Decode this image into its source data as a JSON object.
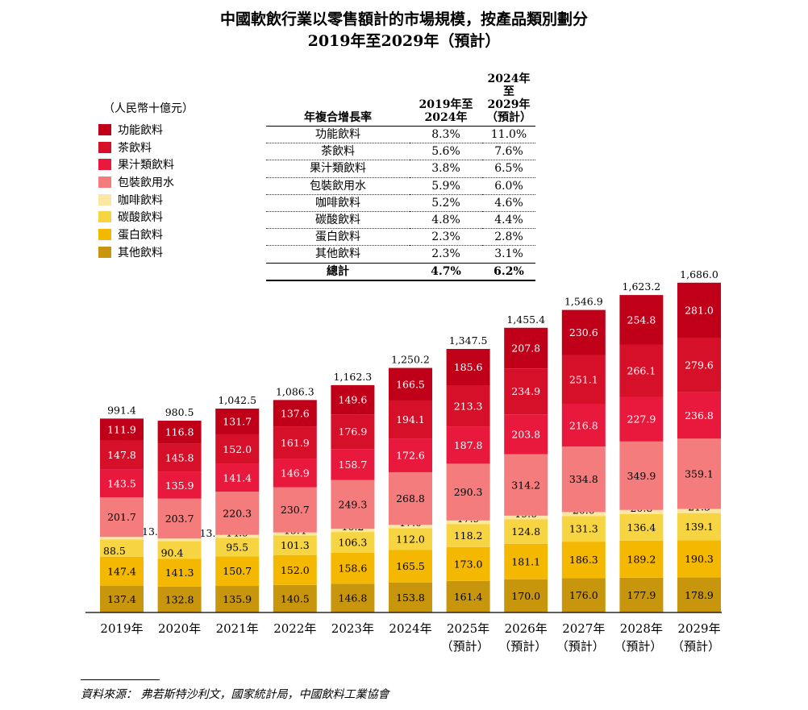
{
  "title_line1": "中國軟飲行業以零售額計的市場規模，按產品類別劃分",
  "title_line2": "2019年至2029年（預計）",
  "unit": "（人民幣十億元）",
  "source": "資料來源：  弗若斯特沙利文，國家統計局，中國飲料工業協會",
  "cagr_table": {
    "header": {
      "label": "年複合增長率",
      "col1": "2019年至\n2024年",
      "col2": "2024年至\n2029年\n（預計）"
    },
    "rows": [
      {
        "name": "功能飲料",
        "c1": "8.3%",
        "c2": "11.0%"
      },
      {
        "name": "茶飲料",
        "c1": "5.6%",
        "c2": "7.6%"
      },
      {
        "name": "果汁類飲料",
        "c1": "3.8%",
        "c2": "6.5%"
      },
      {
        "name": "包裝飲用水",
        "c1": "5.9%",
        "c2": "6.0%"
      },
      {
        "name": "咖啡飲料",
        "c1": "5.2%",
        "c2": "4.6%"
      },
      {
        "name": "碳酸飲料",
        "c1": "4.8%",
        "c2": "4.4%"
      },
      {
        "name": "蛋白飲料",
        "c1": "2.3%",
        "c2": "2.8%"
      },
      {
        "name": "其他飲料",
        "c1": "2.3%",
        "c2": "3.1%"
      }
    ],
    "total": {
      "name": "總計",
      "c1": "4.7%",
      "c2": "6.2%"
    }
  },
  "chart_data": {
    "type": "bar",
    "stacked": true,
    "legend_position": "top-left",
    "categories": [
      "2019年",
      "2020年",
      "2021年",
      "2022年",
      "2023年",
      "2024年",
      "2025年\n（預計）",
      "2026年\n（預計）",
      "2027年\n（預計）",
      "2028年\n（預計）",
      "2029年\n（預計）"
    ],
    "totals": [
      991.4,
      980.5,
      1042.5,
      1086.3,
      1162.3,
      1250.2,
      1347.5,
      1455.4,
      1546.9,
      1623.2,
      1686.0
    ],
    "totals_labels": [
      "991.4",
      "980.5",
      "1,042.5",
      "1,086.3",
      "1,162.3",
      "1,250.2",
      "1,347.5",
      "1,455.4",
      "1,546.9",
      "1,623.2",
      "1,686.0"
    ],
    "series": [
      {
        "name": "其他飲料",
        "color": "#C8960C",
        "values": [
          137.4,
          132.8,
          135.9,
          140.5,
          146.8,
          153.8,
          161.4,
          170.0,
          176.0,
          177.9,
          178.9
        ]
      },
      {
        "name": "蛋白飲料",
        "color": "#F5B800",
        "values": [
          147.4,
          141.3,
          150.7,
          152.0,
          158.6,
          165.5,
          173.0,
          181.1,
          186.3,
          189.2,
          190.3
        ]
      },
      {
        "name": "碳酸飲料",
        "color": "#F7D442",
        "values": [
          88.5,
          90.4,
          95.5,
          101.3,
          106.3,
          112.0,
          118.2,
          124.8,
          131.3,
          136.4,
          139.1
        ]
      },
      {
        "name": "咖啡飲料",
        "color": "#FBE6A2",
        "values": [
          13.2,
          13.8,
          14.9,
          15.4,
          16.2,
          17.0,
          17.9,
          19.0,
          20.0,
          20.8,
          21.3
        ]
      },
      {
        "name": "包裝飲用水",
        "color": "#F47C7C",
        "values": [
          201.7,
          203.7,
          220.3,
          230.7,
          249.3,
          268.8,
          290.3,
          314.2,
          334.8,
          349.9,
          359.1
        ]
      },
      {
        "name": "果汁類飲料",
        "color": "#E8193C",
        "values": [
          143.5,
          135.9,
          141.4,
          146.9,
          158.7,
          172.6,
          187.8,
          203.8,
          216.8,
          227.9,
          236.8
        ]
      },
      {
        "name": "茶飲料",
        "color": "#D7102A",
        "values": [
          147.8,
          145.8,
          152.0,
          161.9,
          176.9,
          194.1,
          213.3,
          234.9,
          251.1,
          266.1,
          279.6
        ]
      },
      {
        "name": "功能飲料",
        "color": "#C00018",
        "values": [
          111.9,
          116.8,
          131.7,
          137.6,
          149.6,
          166.5,
          185.6,
          207.8,
          230.6,
          254.8,
          281.0
        ]
      }
    ],
    "legend_order": [
      "功能飲料",
      "茶飲料",
      "果汁類飲料",
      "包裝飲用水",
      "咖啡飲料",
      "碳酸飲料",
      "蛋白飲料",
      "其他飲料"
    ]
  }
}
